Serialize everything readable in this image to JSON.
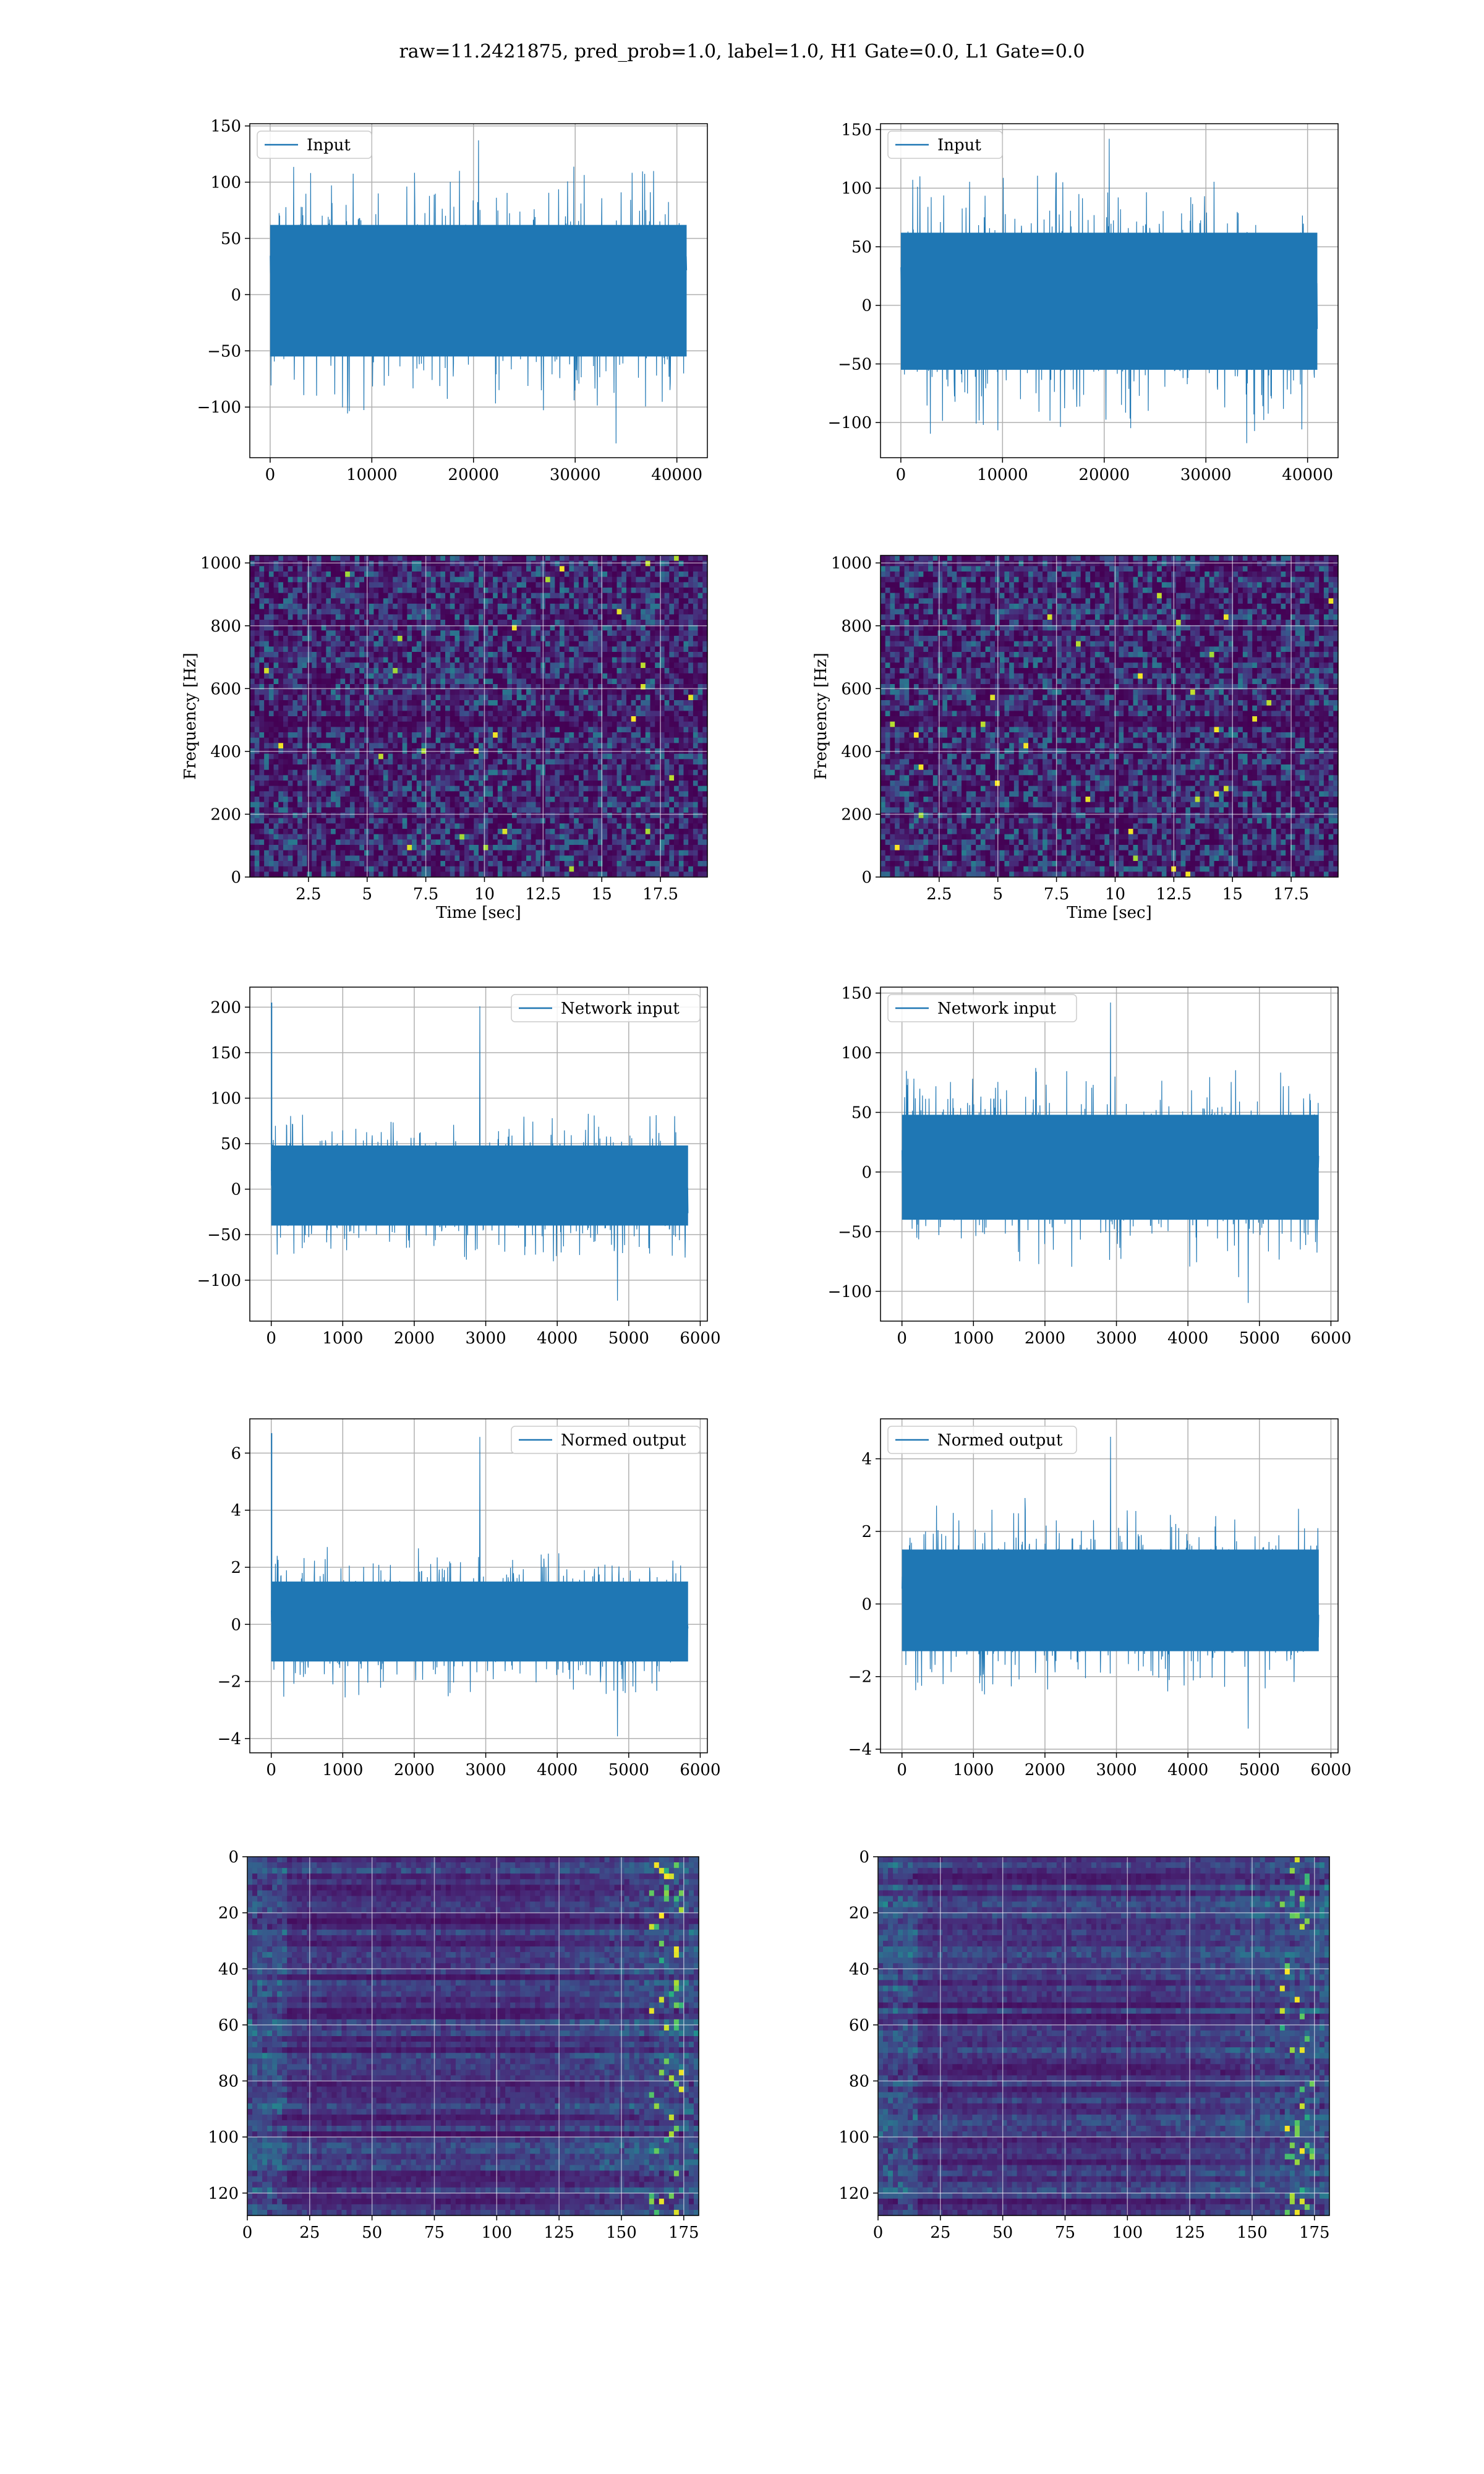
{
  "suptitle": "raw=11.2421875, pred_prob=1.0, label=1.0, H1 Gate=0.0, L1 Gate=0.0",
  "colors": {
    "series": "#1f77b4",
    "grid": "#b0b0b0",
    "viridis_dark": "#440154",
    "viridis_mid": "#21918c",
    "viridis_bright": "#fde725"
  },
  "chart_data": [
    {
      "id": "input-left",
      "type": "line",
      "legend": "Input",
      "legend_loc": "upper left",
      "xlim": [
        -2000,
        43000
      ],
      "ylim": [
        -145,
        152
      ],
      "xticks": [
        0,
        10000,
        20000,
        30000,
        40000
      ],
      "yticks": [
        -100,
        -50,
        0,
        50,
        100,
        150
      ],
      "series": [
        {
          "name": "Input",
          "x_range": [
            0,
            40960
          ],
          "band": [
            -55,
            62
          ],
          "min": -135,
          "max": 140
        }
      ],
      "grid": true
    },
    {
      "id": "input-right",
      "type": "line",
      "legend": "Input",
      "legend_loc": "upper left",
      "xlim": [
        -2000,
        43000
      ],
      "ylim": [
        -130,
        155
      ],
      "xticks": [
        0,
        10000,
        20000,
        30000,
        40000
      ],
      "yticks": [
        -100,
        -50,
        0,
        50,
        100,
        150
      ],
      "series": [
        {
          "name": "Input",
          "x_range": [
            0,
            40960
          ],
          "band": [
            -55,
            62
          ],
          "min": -120,
          "max": 145
        }
      ],
      "grid": true
    },
    {
      "id": "spectrogram-left",
      "type": "heatmap",
      "cmap": "viridis",
      "xlabel": "Time [sec]",
      "ylabel": "Frequency [Hz]",
      "xlim": [
        0,
        19.5
      ],
      "ylim": [
        0,
        1024
      ],
      "xticks": [
        2.5,
        5.0,
        7.5,
        10.0,
        12.5,
        15.0,
        17.5
      ],
      "yticks": [
        0,
        200,
        400,
        600,
        800,
        1000
      ],
      "grid": true
    },
    {
      "id": "spectrogram-right",
      "type": "heatmap",
      "cmap": "viridis",
      "xlabel": "Time [sec]",
      "ylabel": "Frequency [Hz]",
      "xlim": [
        0,
        19.5
      ],
      "ylim": [
        0,
        1024
      ],
      "xticks": [
        2.5,
        5.0,
        7.5,
        10.0,
        12.5,
        15.0,
        17.5
      ],
      "yticks": [
        0,
        200,
        400,
        600,
        800,
        1000
      ],
      "grid": true
    },
    {
      "id": "network-input-left",
      "type": "line",
      "legend": "Network input",
      "legend_loc": "upper right",
      "xlim": [
        -300,
        6100
      ],
      "ylim": [
        -145,
        222
      ],
      "xticks": [
        0,
        1000,
        2000,
        3000,
        4000,
        5000,
        6000
      ],
      "yticks": [
        -100,
        -50,
        0,
        50,
        100,
        150,
        200
      ],
      "series": [
        {
          "name": "Network input",
          "x_range": [
            0,
            5830
          ],
          "band": [
            -40,
            48
          ],
          "min": -125,
          "max": 205,
          "spike_x": 5
        }
      ],
      "grid": true
    },
    {
      "id": "network-input-right",
      "type": "line",
      "legend": "Network input",
      "legend_loc": "upper left",
      "xlim": [
        -300,
        6100
      ],
      "ylim": [
        -125,
        155
      ],
      "xticks": [
        0,
        1000,
        2000,
        3000,
        4000,
        5000,
        6000
      ],
      "yticks": [
        -100,
        -50,
        0,
        50,
        100,
        150
      ],
      "series": [
        {
          "name": "Network input",
          "x_range": [
            0,
            5830
          ],
          "band": [
            -40,
            48
          ],
          "min": -112,
          "max": 145
        }
      ],
      "grid": true
    },
    {
      "id": "normed-output-left",
      "type": "line",
      "legend": "Normed output",
      "legend_loc": "upper right",
      "xlim": [
        -300,
        6100
      ],
      "ylim": [
        -4.5,
        7.2
      ],
      "xticks": [
        0,
        1000,
        2000,
        3000,
        4000,
        5000,
        6000
      ],
      "yticks": [
        -4,
        -2,
        0,
        2,
        4,
        6
      ],
      "series": [
        {
          "name": "Normed output",
          "x_range": [
            0,
            5830
          ],
          "band": [
            -1.3,
            1.5
          ],
          "min": -4.0,
          "max": 6.7,
          "spike_x": 5
        }
      ],
      "grid": true
    },
    {
      "id": "normed-output-right",
      "type": "line",
      "legend": "Normed output",
      "legend_loc": "upper left",
      "xlim": [
        -300,
        6100
      ],
      "ylim": [
        -4.1,
        5.1
      ],
      "xticks": [
        0,
        1000,
        2000,
        3000,
        4000,
        5000,
        6000
      ],
      "yticks": [
        -4,
        -2,
        0,
        2,
        4
      ],
      "series": [
        {
          "name": "Normed output",
          "x_range": [
            0,
            5830
          ],
          "band": [
            -1.3,
            1.5
          ],
          "min": -3.5,
          "max": 4.7
        }
      ],
      "grid": true
    },
    {
      "id": "feature-map-left",
      "type": "heatmap",
      "cmap": "viridis",
      "xlim": [
        0,
        181
      ],
      "ylim": [
        128,
        0
      ],
      "xticks": [
        0,
        25,
        50,
        75,
        100,
        125,
        150,
        175
      ],
      "yticks": [
        0,
        20,
        40,
        60,
        80,
        100,
        120
      ],
      "grid": true
    },
    {
      "id": "feature-map-right",
      "type": "heatmap",
      "cmap": "viridis",
      "xlim": [
        0,
        181
      ],
      "ylim": [
        128,
        0
      ],
      "xticks": [
        0,
        25,
        50,
        75,
        100,
        125,
        150,
        175
      ],
      "yticks": [
        0,
        20,
        40,
        60,
        80,
        100,
        120
      ],
      "grid": true
    }
  ]
}
